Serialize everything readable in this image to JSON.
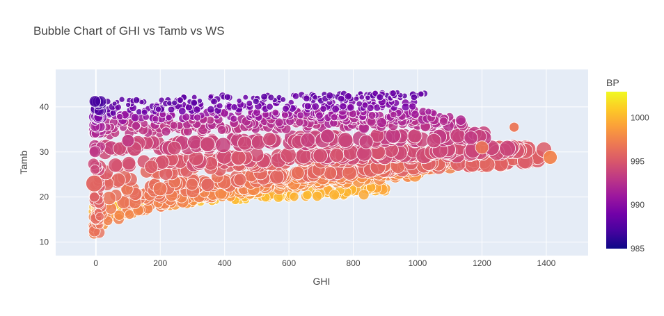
{
  "chart_data": {
    "type": "scatter",
    "title": "Bubble Chart of GHI vs Tamb vs WS",
    "xlabel": "GHI",
    "ylabel": "Tamb",
    "xlim": [
      -125,
      1530
    ],
    "ylim": [
      7,
      48.3
    ],
    "xticks": [
      0,
      200,
      400,
      600,
      800,
      1000,
      1200,
      1400
    ],
    "yticks": [
      10,
      20,
      30,
      40
    ],
    "grid": true,
    "colorbar": {
      "title": "BP",
      "range": [
        985,
        1003
      ],
      "ticks": [
        985,
        990,
        995,
        1000
      ],
      "colorscale": [
        "#0d0887",
        "#46039f",
        "#7201a8",
        "#9c179e",
        "#bd3786",
        "#d8576b",
        "#ed7953",
        "#fb9f3a",
        "#fdca26",
        "#f0f921"
      ]
    },
    "size_variable": "WS",
    "bands": [
      {
        "tamb": [
          16.5,
          21.5
        ],
        "bp": [
          1001,
          999.5
        ],
        "xmax": [
          0,
          900
        ],
        "ws": [
          0.28,
          0.55
        ]
      },
      {
        "tamb": [
          12.5,
          25.5
        ],
        "bp": [
          998.5,
          998
        ],
        "xmax": [
          0,
          1000
        ],
        "ws": [
          0.4,
          0.7
        ]
      },
      {
        "tamb": [
          12,
          27.5
        ],
        "bp": [
          997.5,
          997.5
        ],
        "xmax": [
          0,
          1100
        ],
        "ws": [
          0.5,
          0.85
        ]
      },
      {
        "tamb": [
          15,
          29.5
        ],
        "bp": [
          997,
          996.5
        ],
        "xmax": [
          0,
          1300
        ],
        "ws": [
          0.65,
          0.95
        ]
      },
      {
        "tamb": [
          18.5,
          28.5
        ],
        "bp": [
          996.5,
          995.5
        ],
        "xmax": [
          0,
          1380
        ],
        "ws": [
          0.7,
          0.9
        ]
      },
      {
        "tamb": [
          22,
          31
        ],
        "bp": [
          996,
          995
        ],
        "xmax": [
          0,
          1390
        ],
        "ws": [
          0.75,
          0.85
        ]
      },
      {
        "tamb": [
          25.5,
          30.5
        ],
        "bp": [
          995,
          994
        ],
        "xmax": [
          0,
          1300
        ],
        "ws": [
          0.8,
          0.9
        ]
      },
      {
        "tamb": [
          30,
          33.5
        ],
        "bp": [
          994,
          993.5
        ],
        "xmax": [
          0,
          1200
        ],
        "ws": [
          0.8,
          0.85
        ]
      },
      {
        "tamb": [
          34,
          36.5
        ],
        "bp": [
          993,
          992.5
        ],
        "xmax": [
          0,
          1150
        ],
        "ws": [
          0.45,
          0.55
        ]
      },
      {
        "tamb": [
          35.5,
          37.5
        ],
        "bp": [
          992.5,
          992
        ],
        "xmax": [
          0,
          1100
        ],
        "ws": [
          0.4,
          0.45
        ]
      },
      {
        "tamb": [
          37.5,
          38.5
        ],
        "bp": [
          990.5,
          991.5
        ],
        "xmax": [
          0,
          1050
        ],
        "ws": [
          0.33,
          0.35
        ]
      },
      {
        "tamb": [
          39,
          40.5
        ],
        "bp": [
          988.5,
          989.5
        ],
        "xmax": [
          0,
          1000
        ],
        "ws": [
          0.28,
          0.3
        ]
      },
      {
        "tamb": [
          40.5,
          42.5
        ],
        "bp": [
          988,
          988.5
        ],
        "xmax": [
          0,
          1020
        ],
        "ws": [
          0.22,
          0.25
        ]
      }
    ],
    "highlights": [
      {
        "x": -5,
        "y": 23,
        "bp": 995.8,
        "ws": 1.0
      },
      {
        "x": 100,
        "y": 32.5,
        "bp": 993.2,
        "ws": 0.7
      },
      {
        "x": 720,
        "y": 33.5,
        "bp": 993.5,
        "ws": 0.8
      },
      {
        "x": 1200,
        "y": 31,
        "bp": 996.5,
        "ws": 0.75
      },
      {
        "x": 1412,
        "y": 28.8,
        "bp": 997.5,
        "ws": 0.8
      },
      {
        "x": 1300,
        "y": 35.5,
        "bp": 996.8,
        "ws": 0.5
      }
    ]
  }
}
